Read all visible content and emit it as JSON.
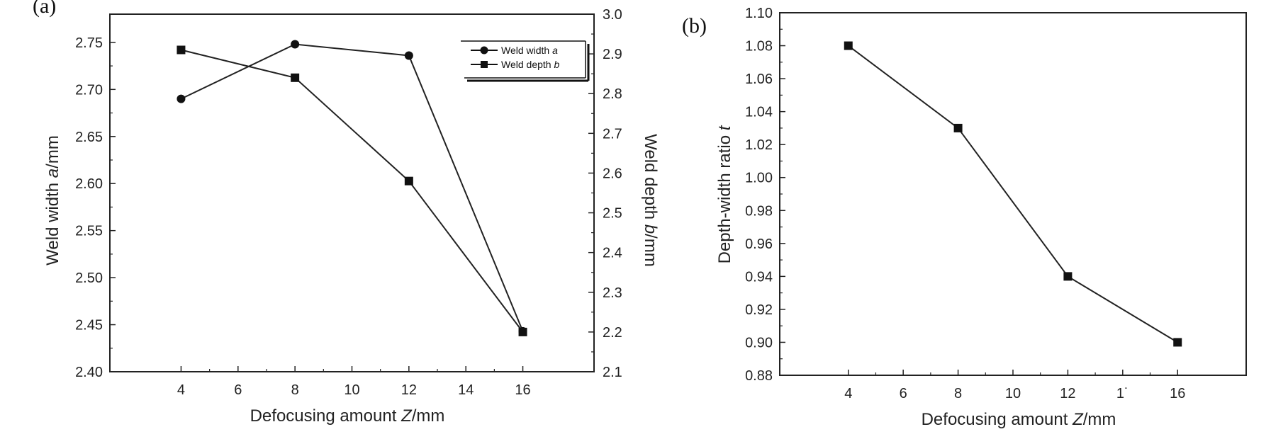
{
  "chart_data": [
    {
      "panel_label": "(a)",
      "type": "line",
      "x": [
        4,
        8,
        12,
        16
      ],
      "xlabel_parts": [
        "Defocusing amount ",
        "Z",
        "/mm"
      ],
      "xlim": [
        1.5,
        18.5
      ],
      "xticks": [
        "4",
        "6",
        "8",
        "10",
        "12",
        "14",
        "16"
      ],
      "ylabel_parts": [
        "Weld width ",
        "a",
        "/mm"
      ],
      "ylim": [
        2.4,
        2.78
      ],
      "yticks": [
        "2.40",
        "2.45",
        "2.50",
        "2.55",
        "2.60",
        "2.65",
        "2.70",
        "2.75"
      ],
      "y2label_parts": [
        "Weld depth ",
        "b",
        "/mm"
      ],
      "y2lim": [
        2.1,
        3.0
      ],
      "y2ticks": [
        "2.1",
        "2.2",
        "2.3",
        "2.4",
        "2.5",
        "2.6",
        "2.7",
        "2.8",
        "2.9",
        "3.0"
      ],
      "series": [
        {
          "name": "Weld width a",
          "legend_parts": [
            "Weld width ",
            "a"
          ],
          "marker": "circle",
          "axis": "left",
          "values": [
            2.69,
            2.748,
            2.736,
            2.443
          ]
        },
        {
          "name": "Weld depth b",
          "legend_parts": [
            "Weld depth ",
            "b"
          ],
          "marker": "square",
          "axis": "right",
          "values": [
            2.91,
            2.84,
            2.58,
            2.2
          ]
        }
      ],
      "legend_position": "top-right"
    },
    {
      "panel_label": "(b)",
      "type": "line",
      "x": [
        4,
        8,
        12,
        16
      ],
      "xlabel_parts": [
        "Defocusing amount ",
        "Z",
        "/mm"
      ],
      "xlim": [
        1.5,
        18.5
      ],
      "xticks": [
        "4",
        "6",
        "8",
        "10",
        "12",
        "1˙",
        "16"
      ],
      "ylabel_parts": [
        "Depth-width ratio ",
        "t"
      ],
      "ylim": [
        0.88,
        1.1
      ],
      "yticks": [
        "0.88",
        "0.90",
        "0.92",
        "0.94",
        "0.96",
        "0.98",
        "1.00",
        "1.02",
        "1.04",
        "1.06",
        "1.08",
        "1.10"
      ],
      "series": [
        {
          "name": "Depth-width ratio t",
          "marker": "square",
          "axis": "left",
          "values": [
            1.08,
            1.03,
            0.94,
            0.9
          ]
        }
      ]
    }
  ]
}
